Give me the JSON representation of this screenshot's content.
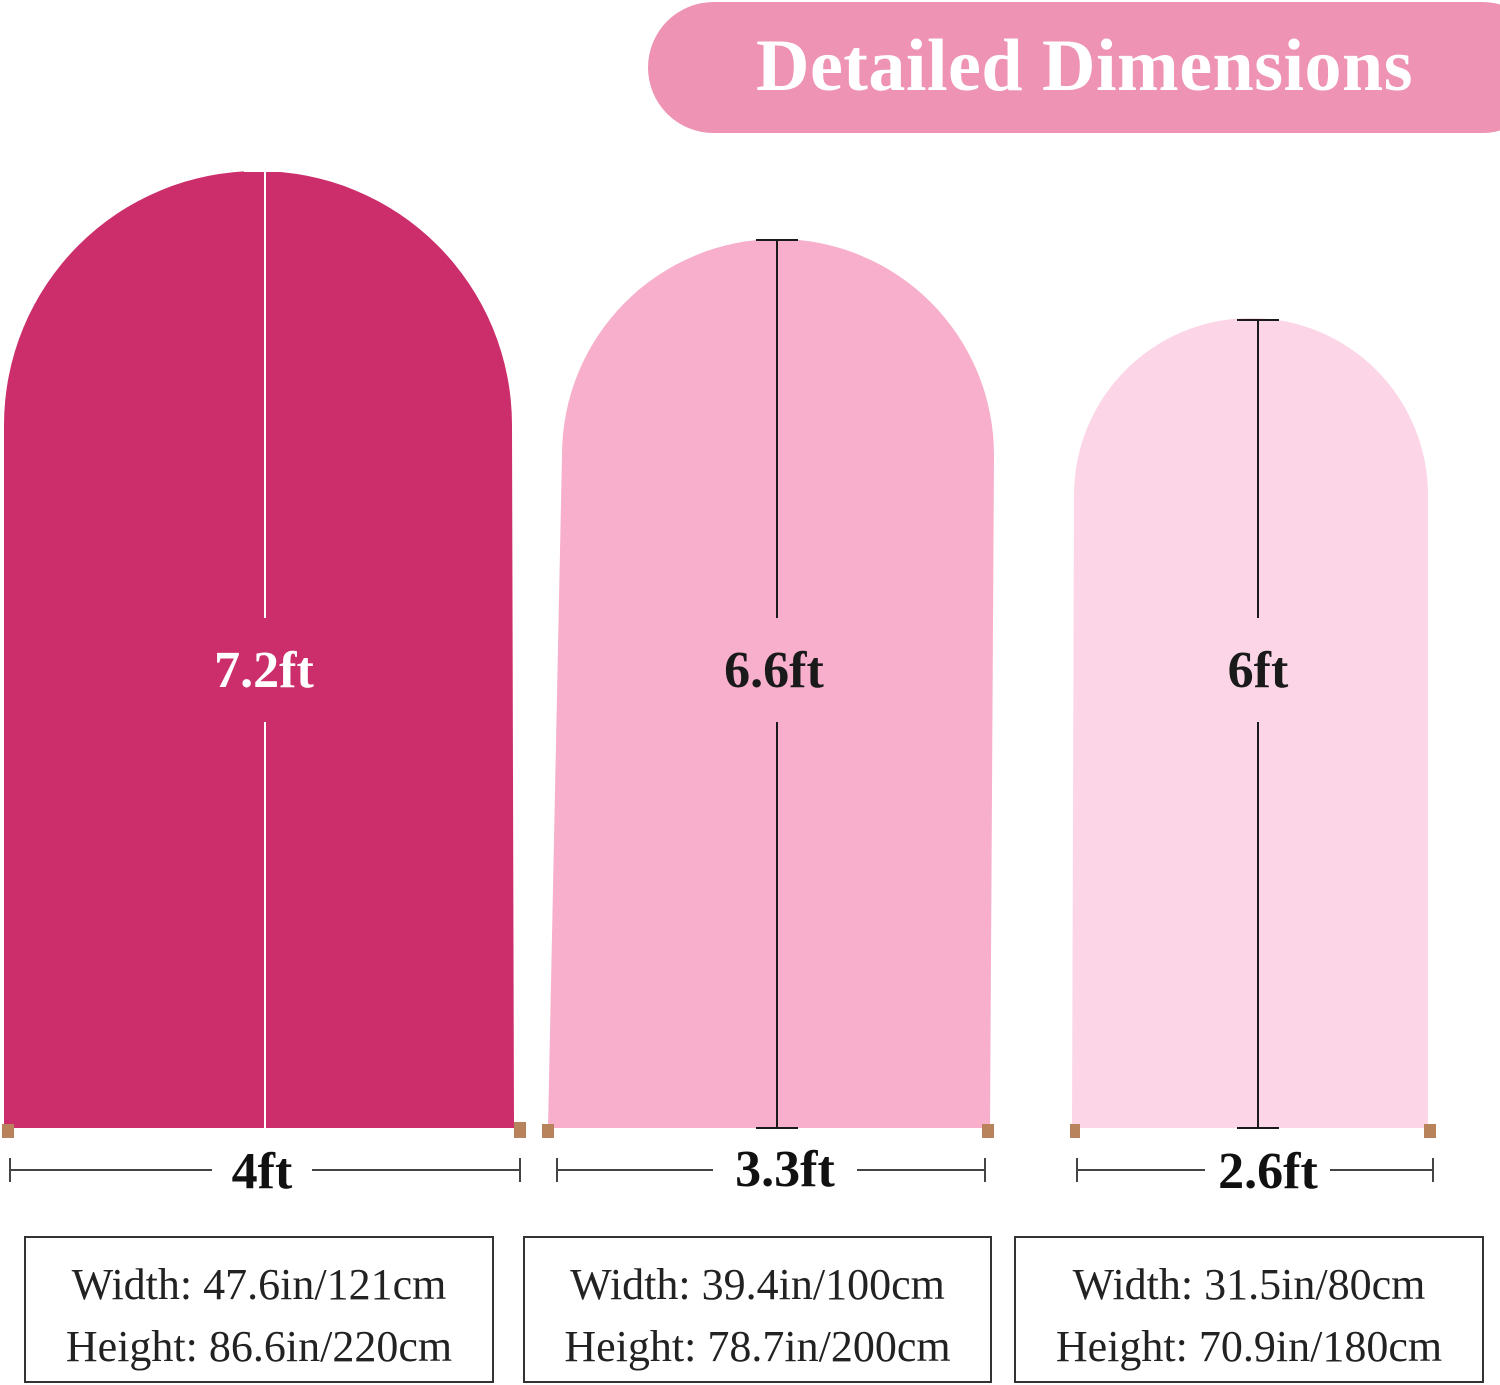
{
  "banner": {
    "title": "Detailed Dimensions",
    "color": "#ee93b3"
  },
  "arches": [
    {
      "color": "#cc2e6c",
      "height_label": "7.2ft",
      "height_label_color": "#ffffff",
      "line_color": "#ffffff",
      "width_label": "4ft",
      "spec_width": "Width: 47.6in/121cm",
      "spec_height": "Height: 86.6in/220cm"
    },
    {
      "color": "#f7afcb",
      "height_label": "6.6ft",
      "height_label_color": "#1a1a1a",
      "line_color": "#1a1a1a",
      "width_label": "3.3ft",
      "spec_width": "Width: 39.4in/100cm",
      "spec_height": "Height: 78.7in/200cm"
    },
    {
      "color": "#fcd6e6",
      "height_label": "6ft",
      "height_label_color": "#1a1a1a",
      "line_color": "#1a1a1a",
      "width_label": "2.6ft",
      "spec_width": "Width: 31.5in/80cm",
      "spec_height": "Height: 70.9in/180cm"
    }
  ]
}
